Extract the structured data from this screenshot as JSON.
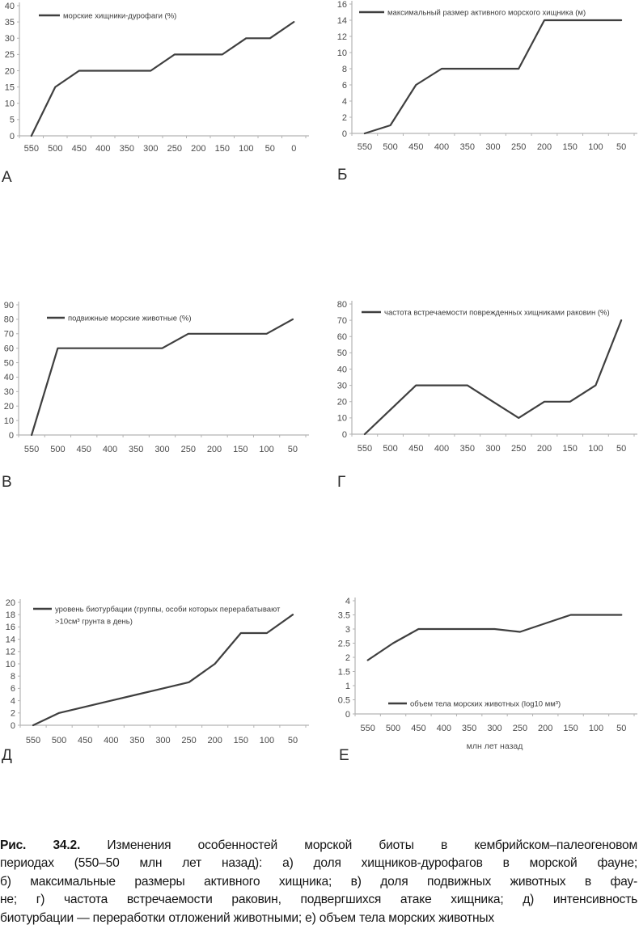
{
  "figure": {
    "caption": {
      "label": "Рис. 34.2.",
      "lines": [
        "Изменения особенностей морской биоты в кембрийском–палеогеновом",
        "периодах (550–50 млн лет назад): а) доля хищников-дурофагов в морской фауне;",
        "б) максимальные размеры активного хищника; в) доля подвижных животных в фау-",
        "не; г) частота встречаемости раковин, подвергшихся атаке хищника; д) интенсивность",
        "биотурбации — переработки отложений животными; е) объем тела морских животных"
      ]
    }
  },
  "colors": {
    "line": "#3f3f3f",
    "axis": "#b3b3b3",
    "tick_text": "#4a4a4a",
    "legend_text": "#3a3a3a",
    "letter_text": "#2b2b2b"
  },
  "chart_data": [
    {
      "type": "line",
      "letter": "А",
      "legend": [
        "морские хищники-дурофаги (%)"
      ],
      "legend_position": "top-left",
      "categories": [
        550,
        500,
        450,
        400,
        350,
        300,
        250,
        200,
        150,
        100,
        50,
        0
      ],
      "values": [
        0,
        15,
        20,
        20,
        20,
        20,
        25,
        25,
        25,
        30,
        30,
        35
      ],
      "ylim": [
        0,
        40
      ],
      "ytick_step": 5,
      "xlabel": "",
      "grid": false
    },
    {
      "type": "line",
      "letter": "Б",
      "legend": [
        "максимальный размер активного морского хищника (м)"
      ],
      "legend_position": "top-left",
      "categories": [
        550,
        500,
        450,
        400,
        350,
        300,
        250,
        200,
        150,
        100,
        50
      ],
      "values": [
        0,
        1,
        6,
        8,
        8,
        8,
        8,
        14,
        14,
        14,
        14
      ],
      "ylim": [
        0,
        16
      ],
      "ytick_step": 2,
      "xlabel": "",
      "grid": false
    },
    {
      "type": "line",
      "letter": "В",
      "legend": [
        "подвижные морские животные (%)"
      ],
      "legend_position": "top-left",
      "categories": [
        550,
        500,
        450,
        400,
        350,
        300,
        250,
        200,
        150,
        100,
        50
      ],
      "values": [
        0,
        60,
        60,
        60,
        60,
        60,
        70,
        70,
        70,
        70,
        80
      ],
      "ylim": [
        0,
        90
      ],
      "ytick_step": 10,
      "xlabel": "",
      "grid": false
    },
    {
      "type": "line",
      "letter": "Г",
      "legend": [
        "частота встречаемости поврежденных хищниками раковин (%)"
      ],
      "legend_position": "top-left",
      "categories": [
        550,
        500,
        450,
        400,
        350,
        300,
        250,
        200,
        150,
        100,
        50
      ],
      "values": [
        0,
        15,
        30,
        30,
        30,
        20,
        10,
        20,
        20,
        30,
        70
      ],
      "ylim": [
        0,
        80
      ],
      "ytick_step": 10,
      "xlabel": "",
      "grid": false
    },
    {
      "type": "line",
      "letter": "Д",
      "legend": [
        "уровень биотурбации (группы, особи которых перерабатывают",
        ">10см³ грунта в день)"
      ],
      "legend_position": "top-left",
      "categories": [
        550,
        500,
        450,
        400,
        350,
        300,
        250,
        200,
        150,
        100,
        50
      ],
      "values": [
        0,
        2,
        3,
        4,
        5,
        6,
        7,
        10,
        15,
        15,
        18
      ],
      "ylim": [
        0,
        20
      ],
      "ytick_step": 2,
      "xlabel": "",
      "grid": false
    },
    {
      "type": "line",
      "letter": "Е",
      "legend": [
        "объем тела морских животных (log10 мм³)"
      ],
      "legend_position": "bottom-center",
      "categories": [
        550,
        500,
        450,
        400,
        350,
        300,
        250,
        200,
        150,
        100,
        50
      ],
      "values": [
        1.9,
        2.5,
        3,
        3,
        3,
        3,
        2.9,
        3.2,
        3.5,
        3.5,
        3.5
      ],
      "ylim": [
        0,
        4
      ],
      "ytick_step": 0.5,
      "xlabel": "млн лет назад",
      "grid": false
    }
  ]
}
